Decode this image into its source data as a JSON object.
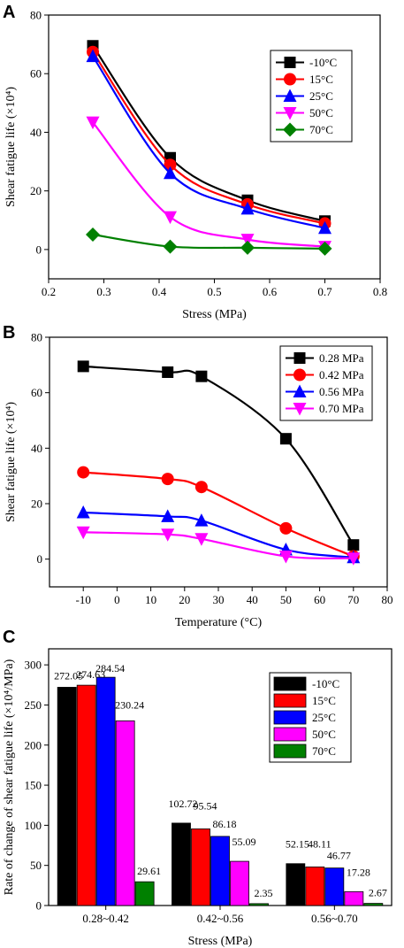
{
  "chart_data": [
    {
      "panel": "A",
      "type": "line",
      "xlabel": "Stress (MPa)",
      "ylabel": "Shear fatigue life (×10⁴)",
      "xlim": [
        0.2,
        0.8
      ],
      "ylim": [
        -10,
        80
      ],
      "xticks": [
        "0.2",
        "0.3",
        "0.4",
        "0.5",
        "0.6",
        "0.7",
        "0.8"
      ],
      "yticks": [
        "0",
        "20",
        "40",
        "60",
        "80"
      ],
      "legend_position": "top-right",
      "x": [
        0.28,
        0.42,
        0.56,
        0.7
      ],
      "series": [
        {
          "name": "-10°C",
          "color": "#000000",
          "marker": "square",
          "values": [
            69.5,
            31.3,
            16.8,
            9.7
          ]
        },
        {
          "name": "15°C",
          "color": "#ff0000",
          "marker": "circle",
          "values": [
            67.4,
            28.9,
            15.4,
            8.9
          ]
        },
        {
          "name": "25°C",
          "color": "#0000ff",
          "marker": "triangle-up",
          "values": [
            65.9,
            26.0,
            13.9,
            7.3
          ]
        },
        {
          "name": "50°C",
          "color": "#ff00ff",
          "marker": "triangle-down",
          "values": [
            43.4,
            11.1,
            3.4,
            1.0
          ]
        },
        {
          "name": "70°C",
          "color": "#008000",
          "marker": "diamond",
          "values": [
            5.1,
            1.0,
            0.6,
            0.3
          ]
        }
      ]
    },
    {
      "panel": "B",
      "type": "line",
      "xlabel": "Temperature (°C)",
      "ylabel": "Shear fatigue life (×10⁴)",
      "xlim": [
        -20,
        80
      ],
      "ylim": [
        -10,
        80
      ],
      "xticks": [
        "-10",
        "0",
        "10",
        "20",
        "30",
        "40",
        "50",
        "60",
        "70",
        "80"
      ],
      "yticks": [
        "0",
        "20",
        "40",
        "60",
        "80"
      ],
      "legend_position": "top-right",
      "x": [
        -10,
        15,
        25,
        50,
        70
      ],
      "series": [
        {
          "name": "0.28 MPa",
          "color": "#000000",
          "marker": "square",
          "values": [
            69.5,
            67.4,
            65.9,
            43.4,
            5.1
          ]
        },
        {
          "name": "0.42 MPa",
          "color": "#ff0000",
          "marker": "circle",
          "values": [
            31.3,
            28.9,
            26.0,
            11.1,
            1.0
          ]
        },
        {
          "name": "0.56 MPa",
          "color": "#0000ff",
          "marker": "triangle-up",
          "values": [
            16.8,
            15.4,
            13.9,
            3.4,
            0.6
          ]
        },
        {
          "name": "0.70 MPa",
          "color": "#ff00ff",
          "marker": "triangle-down",
          "values": [
            9.7,
            8.9,
            7.3,
            1.0,
            0.3
          ]
        }
      ]
    },
    {
      "panel": "C",
      "type": "bar",
      "xlabel": "Stress (MPa)",
      "ylabel": "Rate of change of shear fatigue life (×10⁴/MPa)",
      "ylim": [
        0,
        320
      ],
      "yticks": [
        "0",
        "50",
        "100",
        "150",
        "200",
        "250",
        "300"
      ],
      "legend_position": "top-right",
      "categories": [
        "0.28~0.42",
        "0.42~0.56",
        "0.56~0.70"
      ],
      "series": [
        {
          "name": "-10°C",
          "color": "#000000",
          "values": [
            272.05,
            102.72,
            52.15
          ],
          "labels": [
            "272.05",
            "102.72",
            "52.15"
          ]
        },
        {
          "name": "15°C",
          "color": "#ff0000",
          "values": [
            274.63,
            95.54,
            48.11
          ],
          "labels": [
            "274.63",
            "95.54",
            "48.11"
          ]
        },
        {
          "name": "25°C",
          "color": "#0000ff",
          "values": [
            284.54,
            86.18,
            46.77
          ],
          "labels": [
            "284.54",
            "86.18",
            "46.77"
          ]
        },
        {
          "name": "50°C",
          "color": "#ff00ff",
          "values": [
            230.24,
            55.09,
            17.28
          ],
          "labels": [
            "230.24",
            "55.09",
            "17.28"
          ]
        },
        {
          "name": "70°C",
          "color": "#008000",
          "values": [
            29.61,
            2.35,
            2.67
          ],
          "labels": [
            "29.61",
            "2.35",
            "2.67"
          ]
        }
      ]
    }
  ]
}
